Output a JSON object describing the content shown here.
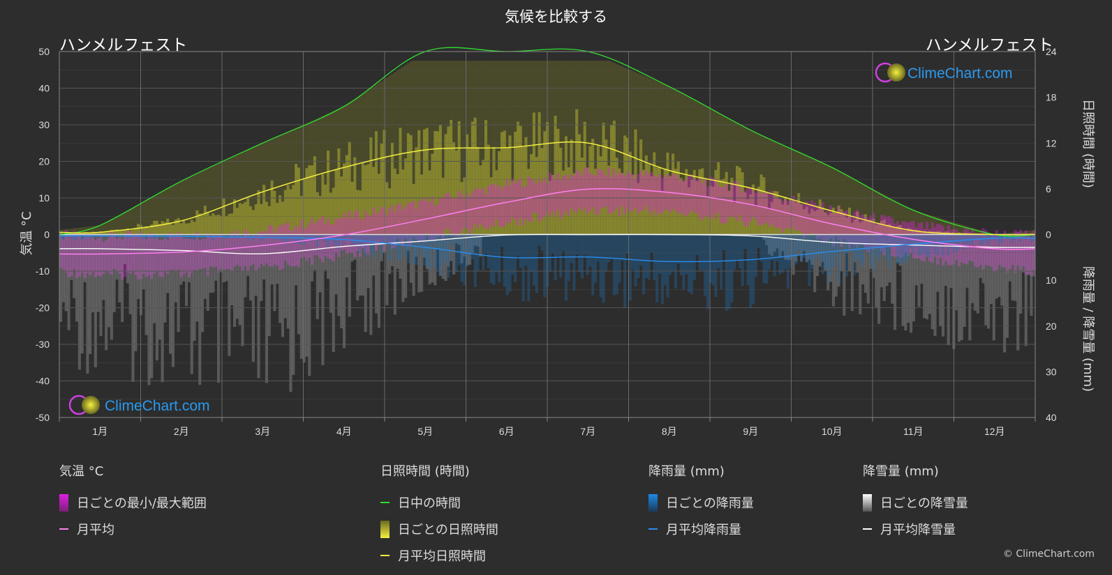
{
  "title": "気候を比較する",
  "location_left": "ハンメルフェスト",
  "location_right": "ハンメルフェスト",
  "copyright": "© ClimeChart.com",
  "watermark": "ClimeChart.com",
  "colors": {
    "background": "#2d2d2d",
    "grid": "#555555",
    "temp_range": "#e020e0",
    "temp_avg": "#ff7ff0",
    "daylight": "#30e030",
    "sunshine_bar": "#d8d838",
    "sunshine_avg": "#f4f040",
    "rain_bar": "#1e6fb4",
    "rain_avg": "#2a8ef0",
    "snow_bar": "#bbbbbb",
    "snow_avg": "#ffffff",
    "watermark": "#2a9af0"
  },
  "legend": [
    {
      "header": "気温 °C",
      "items": [
        {
          "label": "日ごとの最小/最大範囲",
          "icon": "magenta-gradient"
        },
        {
          "label": "月平均",
          "icon": "pink-line"
        }
      ]
    },
    {
      "header": "日照時間 (時間)",
      "items": [
        {
          "label": "日中の時間",
          "icon": "green-line"
        },
        {
          "label": "日ごとの日照時間",
          "icon": "yellow-gradient"
        },
        {
          "label": "月平均日照時間",
          "icon": "yellow-line"
        }
      ]
    },
    {
      "header": "降雨量 (mm)",
      "items": [
        {
          "label": "日ごとの降雨量",
          "icon": "blue-gradient"
        },
        {
          "label": "月平均降雨量",
          "icon": "blue-line"
        }
      ]
    },
    {
      "header": "降雪量 (mm)",
      "items": [
        {
          "label": "日ごとの降雪量",
          "icon": "white-gradient"
        },
        {
          "label": "月平均降雪量",
          "icon": "white-line"
        }
      ]
    }
  ],
  "chart_data": {
    "type": "line",
    "categories": [
      "1月",
      "2月",
      "3月",
      "4月",
      "5月",
      "6月",
      "7月",
      "8月",
      "9月",
      "10月",
      "11月",
      "12月"
    ],
    "y_left": {
      "label": "気温 °C",
      "range": [
        -50,
        50
      ],
      "ticks": [
        "50",
        "40",
        "30",
        "20",
        "10",
        "0",
        "-10",
        "-20",
        "-30",
        "-40",
        "-50"
      ]
    },
    "y_right_top": {
      "label": "日照時間 (時間)",
      "range": [
        0,
        24
      ],
      "ticks": [
        "24",
        "18",
        "12",
        "6",
        "0"
      ]
    },
    "y_right_bottom": {
      "label": "降雨量 / 降雪量 (mm)",
      "range": [
        0,
        40
      ],
      "ticks": [
        "10",
        "20",
        "30",
        "40"
      ]
    },
    "grid": true,
    "series": [
      {
        "name": "月平均",
        "unit": "°C",
        "values": [
          -5.3,
          -4.8,
          -3.0,
          -0.1,
          4.2,
          8.8,
          12.4,
          11.5,
          8.2,
          2.9,
          -1.3,
          -3.9
        ]
      },
      {
        "name": "日中の時間",
        "unit": "h",
        "values": [
          1.2,
          7.0,
          12.0,
          16.8,
          24,
          24,
          24,
          19.4,
          13.7,
          8.8,
          3.2,
          0
        ]
      },
      {
        "name": "月平均日照時間",
        "unit": "h",
        "values": [
          0.3,
          1.8,
          5.6,
          8.8,
          11.1,
          11.4,
          12.0,
          8.4,
          6.1,
          3.1,
          0.5,
          0.0
        ]
      },
      {
        "name": "月平均降雨量",
        "unit": "mm",
        "values": [
          0.3,
          0.4,
          0.6,
          1.1,
          2.8,
          5.0,
          4.9,
          5.9,
          5.5,
          3.7,
          2.1,
          0.8
        ]
      },
      {
        "name": "月平均降雪量",
        "unit": "mm",
        "values": [
          3.1,
          3.5,
          4.2,
          2.6,
          1.4,
          0.1,
          0.0,
          0.0,
          0.3,
          1.7,
          2.3,
          2.8
        ]
      }
    ],
    "daily_temp_range": {
      "name": "日ごとの最小/最大範囲",
      "min": [
        -9.5,
        -9.2,
        -7.8,
        -4.0,
        0.5,
        4.8,
        8.3,
        7.8,
        5.0,
        -0.2,
        -4.3,
        -7.6
      ],
      "max": [
        -2.0,
        -1.8,
        -0.5,
        3.2,
        7.2,
        12.2,
        15.6,
        14.6,
        11.0,
        5.3,
        1.0,
        -1.3
      ]
    }
  }
}
